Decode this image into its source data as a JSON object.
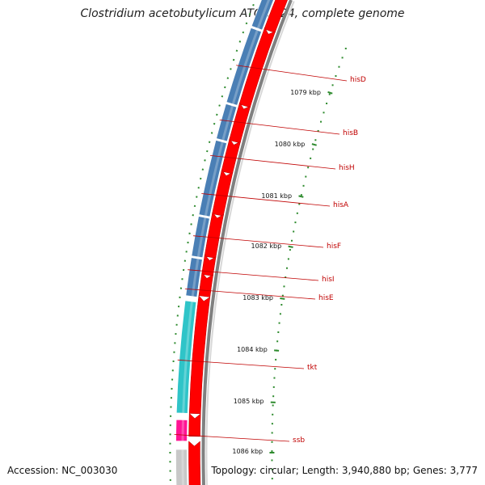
{
  "title": "Clostridium acetobutylicum ATCC 824, complete genome",
  "accession": "Accession: NC_003030",
  "summary": "Topology: circular; Length: 3,940,880 bp; Genes: 3,777",
  "colors": {
    "backbone": "#808080",
    "forward_cds": "#ff0000",
    "reverse_cds_blue": "#4a7fb5",
    "reverse_cds_cyan": "#2fc4c8",
    "reverse_cds_pink": "#ff1493",
    "reverse_cds_grey": "#c8c8c8",
    "tick_green": "#2e8b2e",
    "label_red": "#c00000"
  },
  "ticks": [
    "1079 kbp",
    "1080 kbp",
    "1081 kbp",
    "1082 kbp",
    "1083 kbp",
    "1084 kbp",
    "1085 kbp",
    "1086 kbp"
  ],
  "genes": [
    "hisD",
    "hisB",
    "hisH",
    "hisA",
    "hisF",
    "hisI",
    "hisE",
    "tkt",
    "ssb"
  ]
}
